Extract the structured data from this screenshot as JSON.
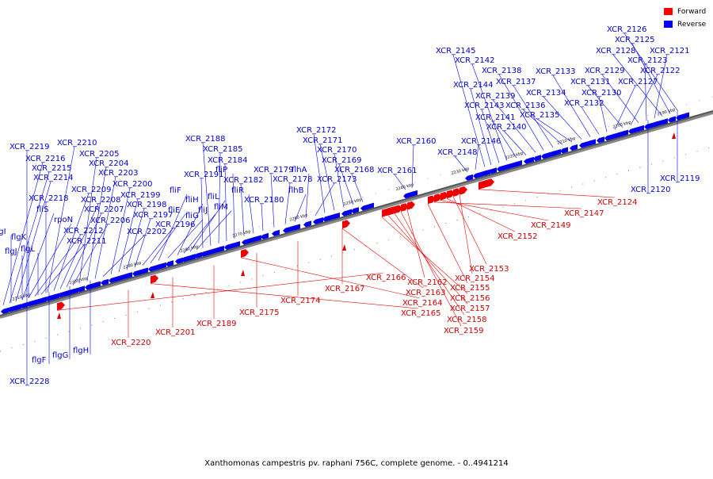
{
  "legend": {
    "forward_label": "Forward",
    "reverse_label": "Reverse",
    "forward_color": "#ff0000",
    "reverse_color": "#0000ff"
  },
  "footer": "Xanthomonas campestris pv. raphani 756C, complete genome. - 0..4941214",
  "ticks": [
    "2190 kbp",
    "2200 kbp",
    "2210 kbp",
    "2220 kbp",
    "2230 kbp",
    "2240 kbp",
    "2250 kbp",
    "2260 kbp",
    "2270 kbp",
    "2280 kbp",
    "2290 kbp",
    "2300 kbp",
    "2310 kbp"
  ],
  "reverse_labels": [
    "XCR_2126",
    "XCR_2125",
    "XCR_2128",
    "XCR_2121",
    "XCR_2123",
    "XCR_2129",
    "XCR_2122",
    "XCR_2131",
    "XCR_2127",
    "XCR_2130",
    "XCR_2132",
    "XCR_2133",
    "XCR_2134",
    "XCR_2135",
    "XCR_2136",
    "XCR_2137",
    "XCR_2138",
    "XCR_2139",
    "XCR_2140",
    "XCR_2141",
    "XCR_2142",
    "XCR_2143",
    "XCR_2144",
    "XCR_2145",
    "XCR_2146",
    "XCR_2148",
    "XCR_2160",
    "XCR_2161",
    "XCR_2168",
    "XCR_2169",
    "XCR_2170",
    "XCR_2171",
    "XCR_2172",
    "XCR_2173",
    "flhA",
    "flhB",
    "XCR_2178",
    "XCR_2179",
    "XCR_2180",
    "fliR",
    "XCR_2182",
    "fliP",
    "XCR_2184",
    "XCR_2185",
    "XCR_2188",
    "XCR_2191",
    "fliM",
    "fliL",
    "fliJ",
    "fliH",
    "fliG",
    "fliF",
    "fliE",
    "XCR_2196",
    "XCR_2197",
    "XCR_2198",
    "XCR_2199",
    "XCR_2200",
    "XCR_2202",
    "XCR_2203",
    "XCR_2204",
    "XCR_2205",
    "XCR_2206",
    "XCR_2207",
    "XCR_2208",
    "XCR_2209",
    "XCR_2210",
    "XCR_2211",
    "XCR_2212",
    "rpoN",
    "fliS",
    "XCR_2214",
    "XCR_2215",
    "XCR_2216",
    "XCR_2218",
    "XCR_2219",
    "flgI",
    "flgK",
    "flgJ",
    "flgL",
    "XCR_2119",
    "XCR_2120",
    "flgH",
    "flgG",
    "flgF",
    "XCR_2228"
  ],
  "forward_labels": [
    "XCR_2124",
    "XCR_2147",
    "XCR_2149",
    "XCR_2152",
    "XCR_2153",
    "XCR_2154",
    "XCR_2155",
    "XCR_2156",
    "XCR_2157",
    "XCR_2158",
    "XCR_2159",
    "XCR_2162",
    "XCR_2163",
    "XCR_2164",
    "XCR_2165",
    "XCR_2166",
    "XCR_2167",
    "XCR_2174",
    "XCR_2175",
    "XCR_2189",
    "XCR_2201",
    "XCR_2220"
  ]
}
